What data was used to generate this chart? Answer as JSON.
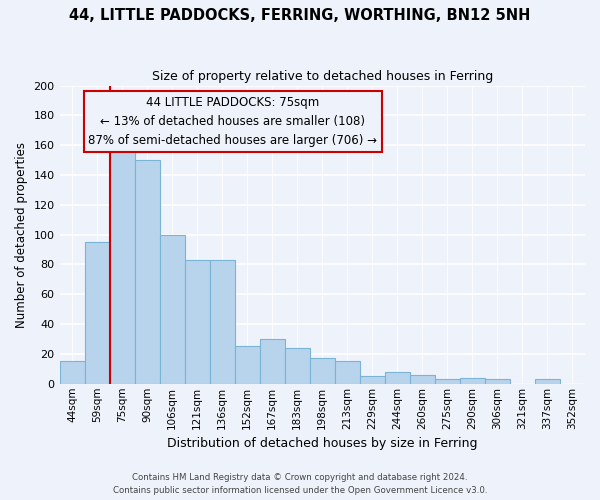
{
  "title1": "44, LITTLE PADDOCKS, FERRING, WORTHING, BN12 5NH",
  "title2": "Size of property relative to detached houses in Ferring",
  "xlabel": "Distribution of detached houses by size in Ferring",
  "ylabel": "Number of detached properties",
  "categories": [
    "44sqm",
    "59sqm",
    "75sqm",
    "90sqm",
    "106sqm",
    "121sqm",
    "136sqm",
    "152sqm",
    "167sqm",
    "183sqm",
    "198sqm",
    "213sqm",
    "229sqm",
    "244sqm",
    "260sqm",
    "275sqm",
    "290sqm",
    "306sqm",
    "321sqm",
    "337sqm",
    "352sqm"
  ],
  "values": [
    15,
    95,
    158,
    150,
    100,
    83,
    83,
    25,
    30,
    24,
    17,
    15,
    5,
    8,
    6,
    3,
    4,
    3,
    0,
    3,
    0
  ],
  "bar_color": "#b8d4ed",
  "bar_edge_color": "#7aaard4",
  "highlight_bar_index": 2,
  "highlight_color": "#cc0000",
  "ylim": [
    0,
    200
  ],
  "yticks": [
    0,
    20,
    40,
    60,
    80,
    100,
    120,
    140,
    160,
    180,
    200
  ],
  "annotation_title": "44 LITTLE PADDOCKS: 75sqm",
  "annotation_line1": "← 13% of detached houses are smaller (108)",
  "annotation_line2": "87% of semi-detached houses are larger (706) →",
  "footer1": "Contains HM Land Registry data © Crown copyright and database right 2024.",
  "footer2": "Contains public sector information licensed under the Open Government Licence v3.0.",
  "bg_color": "#eef2fa"
}
